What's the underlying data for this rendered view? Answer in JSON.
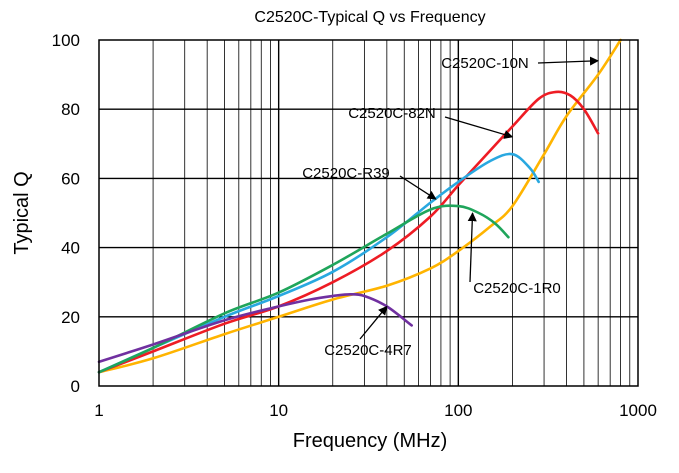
{
  "chart_data": {
    "type": "line",
    "title": "C2520C-Typical Q vs Frequency",
    "xlabel": "Frequency (MHz)",
    "ylabel": "Typical Q",
    "xscale": "log",
    "xlim": [
      1,
      1000
    ],
    "ylim": [
      0,
      100
    ],
    "grid": true,
    "x_ticks": [
      "1",
      "10",
      "100",
      "1000"
    ],
    "y_ticks": [
      "0",
      "20",
      "40",
      "60",
      "80",
      "100"
    ],
    "series": [
      {
        "name": "C2520C-10N",
        "color": "#ffb400",
        "x": [
          1,
          2,
          5,
          10,
          20,
          40,
          70,
          100,
          150,
          200,
          300,
          400,
          600,
          800
        ],
        "y": [
          4,
          8,
          15,
          20,
          25,
          29,
          34,
          39,
          46,
          52,
          67,
          78,
          90,
          100
        ]
      },
      {
        "name": "C2520C-82N",
        "color": "#ee1c24",
        "x": [
          1,
          2,
          5,
          10,
          20,
          40,
          70,
          100,
          150,
          200,
          280,
          350,
          420,
          500,
          600
        ],
        "y": [
          4,
          10,
          18,
          23,
          30,
          39,
          49,
          58,
          68,
          75,
          83,
          85,
          84,
          80,
          73
        ]
      },
      {
        "name": "C2520C-R39",
        "color": "#29a8e0",
        "x": [
          1,
          2,
          5,
          10,
          20,
          40,
          70,
          100,
          150,
          200,
          250,
          280
        ],
        "y": [
          4,
          11,
          20,
          26,
          33,
          43,
          53,
          59,
          65,
          67,
          63,
          59
        ]
      },
      {
        "name": "C2520C-1R0",
        "color": "#1fa55b",
        "x": [
          1,
          2,
          5,
          10,
          20,
          40,
          70,
          100,
          130,
          160,
          190
        ],
        "y": [
          4,
          11,
          21,
          27,
          35,
          44,
          51,
          52,
          50,
          47,
          43
        ]
      },
      {
        "name": "C2520C-4R7",
        "color": "#7030a0",
        "x": [
          1,
          2,
          5,
          10,
          15,
          20,
          25,
          30,
          40,
          55
        ],
        "y": [
          7,
          12,
          19,
          23,
          25,
          26,
          26.5,
          26,
          23,
          17.5
        ]
      }
    ],
    "annotations": [
      {
        "text": "C2520C-10N",
        "points_to": {
          "x": 600,
          "y": 94
        }
      },
      {
        "text": "C2520C-82N",
        "points_to": {
          "x": 200,
          "y": 72
        }
      },
      {
        "text": "C2520C-R39",
        "points_to": {
          "x": 75,
          "y": 54
        }
      },
      {
        "text": "C2520C-1R0",
        "points_to": {
          "x": 120,
          "y": 50
        }
      },
      {
        "text": "C2520C-4R7",
        "points_to": {
          "x": 40,
          "y": 23
        }
      }
    ]
  }
}
